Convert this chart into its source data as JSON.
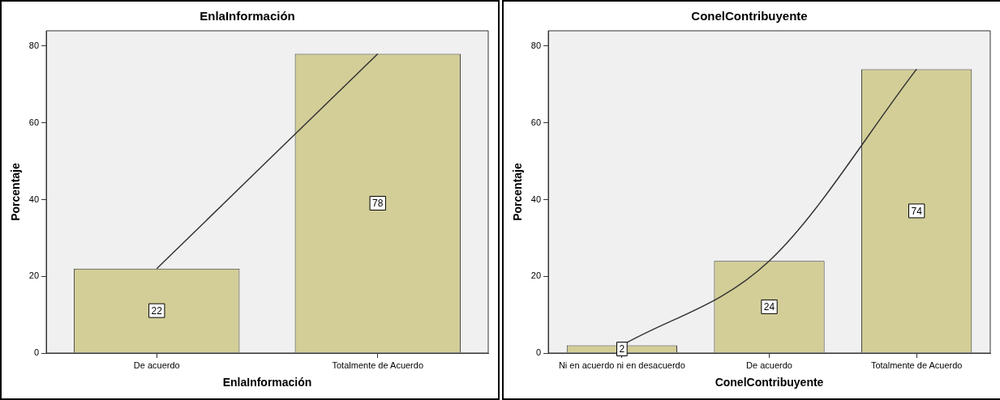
{
  "chart_data": [
    {
      "type": "bar",
      "title": "EnlaInformación",
      "xlabel": "EnlaInformación",
      "ylabel": "Porcentaje",
      "categories": [
        "De acuerdo",
        "Totalmente de Acuerdo"
      ],
      "ylim": [
        0,
        84
      ],
      "yticks": [
        0,
        20,
        40,
        60,
        80
      ],
      "series": [
        {
          "color": "#d3ce97",
          "values": [
            22,
            78
          ],
          "value_labels": [
            "22",
            "78"
          ]
        },
        {
          "type": "line",
          "color": "#333333",
          "values": [
            22,
            78
          ]
        }
      ]
    },
    {
      "type": "bar",
      "title": "ConelContribuyente",
      "xlabel": "ConelContribuyente",
      "ylabel": "Porcentaje",
      "categories": [
        "Ni en acuerdo ni en desacuerdo",
        "De acuerdo",
        "Totalmente de Acuerdo"
      ],
      "ylim": [
        0,
        84
      ],
      "yticks": [
        0,
        20,
        40,
        60,
        80
      ],
      "series": [
        {
          "color": "#d3ce97",
          "values": [
            2,
            24,
            74
          ],
          "value_labels": [
            "2",
            "24",
            "74"
          ]
        },
        {
          "type": "line",
          "color": "#333333",
          "values": [
            2,
            24,
            74
          ]
        }
      ]
    }
  ]
}
